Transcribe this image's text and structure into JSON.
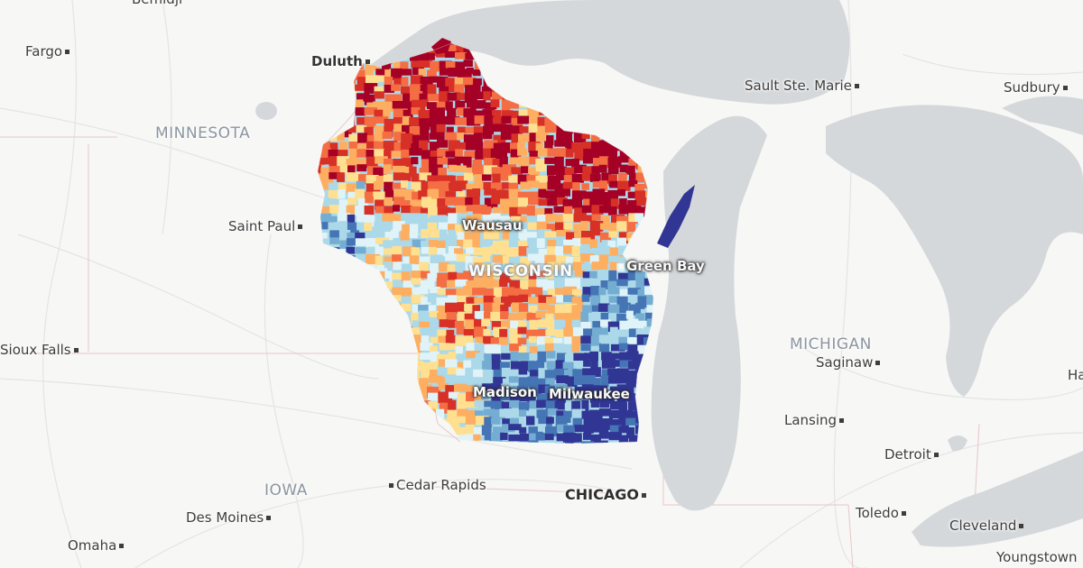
{
  "map": {
    "colors": {
      "background": "#f7f7f6",
      "water": "#d4d7da",
      "border": "#e6c2c2",
      "roads": "#e2e2e2",
      "palette": [
        "#313695",
        "#4575b4",
        "#74add1",
        "#abd9e9",
        "#e0f3f8",
        "#fee090",
        "#fdae61",
        "#f46d43",
        "#d73027",
        "#a50026"
      ]
    },
    "states": {
      "minnesota": "MINNESOTA",
      "wisconsin": "WISCONSIN",
      "michigan": "MICHIGAN",
      "iowa": "IOWA"
    },
    "cities": {
      "bemidji": "Bemidji",
      "fargo": "Fargo",
      "duluth": "Duluth",
      "sault_ste_marie": "Sault Ste. Marie",
      "sudbury": "Sudbury",
      "saint_paul": "Saint Paul",
      "wausau": "Wausau",
      "green_bay": "Green Bay",
      "sioux_falls": "Sioux Falls",
      "saginaw": "Saginaw",
      "madison": "Madison",
      "milwaukee": "Milwaukee",
      "lansing": "Lansing",
      "detroit": "Detroit",
      "cedar_rapids": "Cedar Rapids",
      "chicago": "CHICAGO",
      "des_moines": "Des Moines",
      "toledo": "Toledo",
      "cleveland": "Cleveland",
      "omaha": "Omaha",
      "youngstown": "Youngstown",
      "ha": "Ha"
    }
  }
}
